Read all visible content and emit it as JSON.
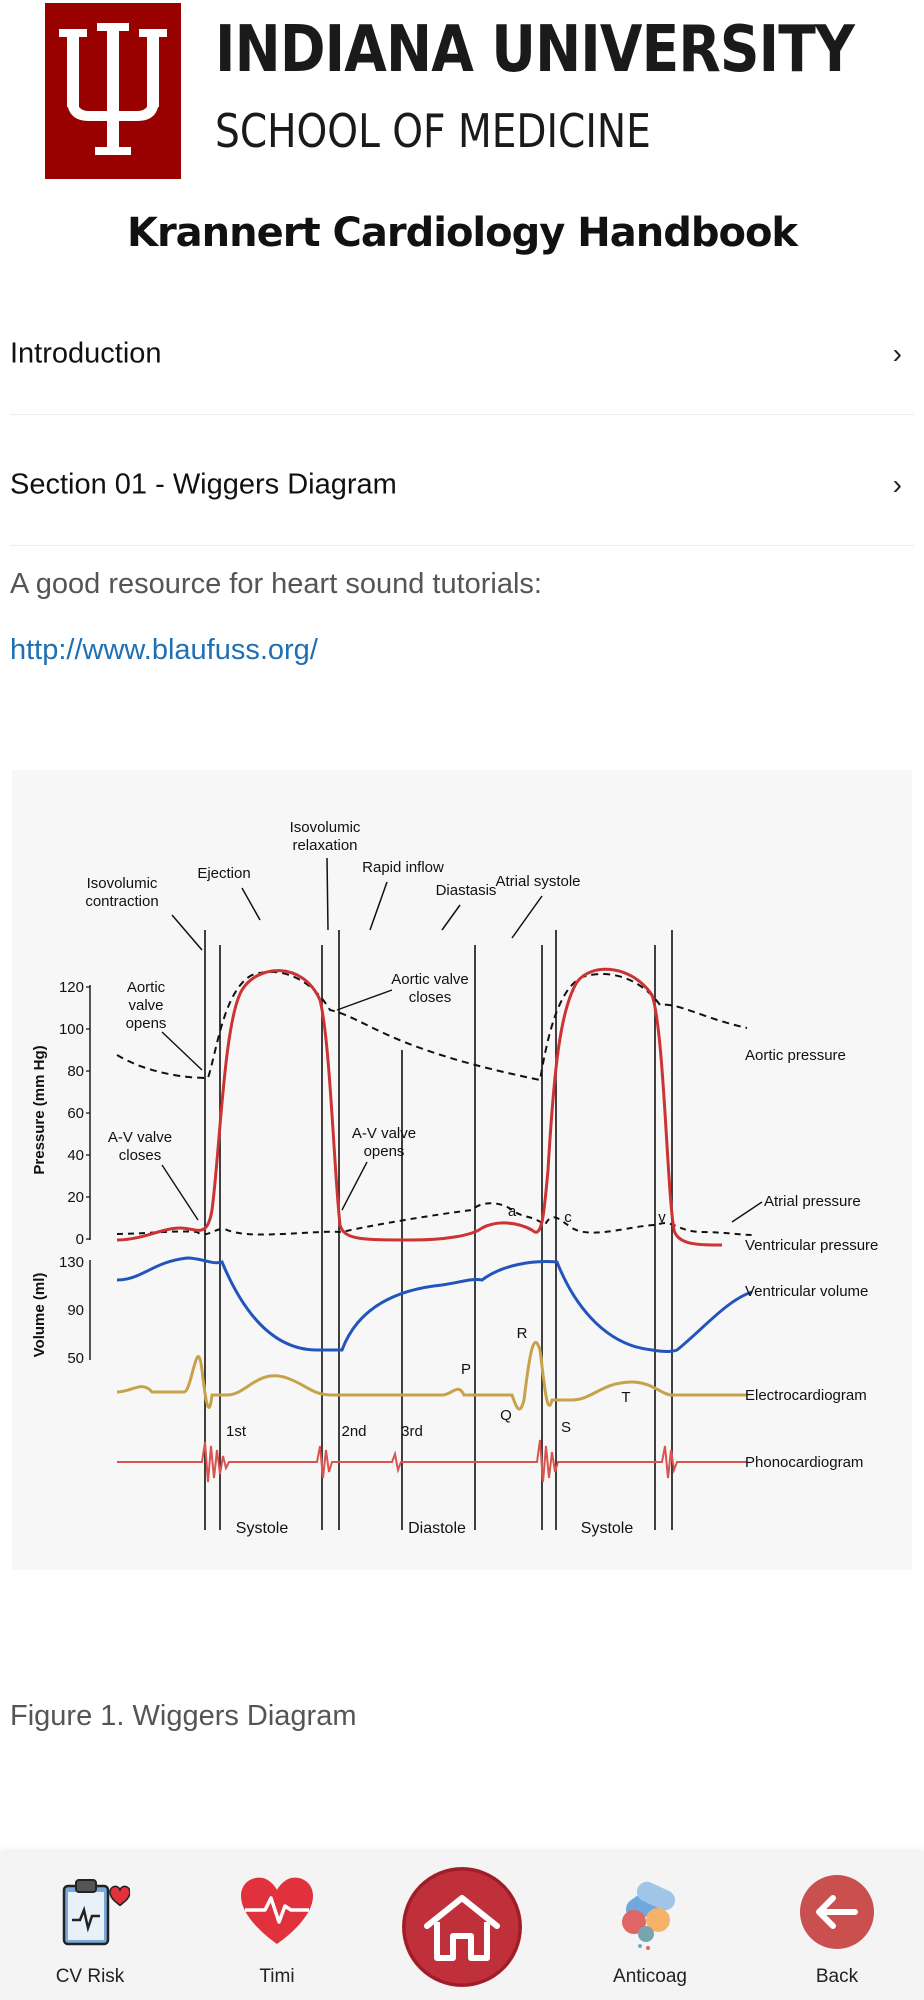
{
  "header": {
    "university": "INDIANA UNIVERSITY",
    "school": "SCHOOL OF MEDICINE",
    "app_title": "Krannert Cardiology Handbook"
  },
  "nav": [
    {
      "label": "Introduction",
      "chevron": "chevron-right-icon"
    },
    {
      "label": "Section 01 - Wiggers Diagram",
      "chevron": "chevron-right-icon"
    }
  ],
  "content": {
    "resource_text": "A good resource for heart sound tutorials:",
    "resource_link": "http://www.blaufuss.org/",
    "figure_caption": "Figure 1. Wiggers Diagram"
  },
  "diagram": {
    "phase_labels": {
      "iso_contraction": [
        "Isovolumic",
        "contraction"
      ],
      "ejection": "Ejection",
      "iso_relaxation": [
        "Isovolumic",
        "relaxation"
      ],
      "rapid_inflow": "Rapid inflow",
      "diastasis": "Diastasis",
      "atrial_systole": "Atrial systole"
    },
    "pressure_axis": {
      "label": "Pressure (mm Hg)",
      "ticks": [
        "120",
        "100",
        "80",
        "60",
        "40",
        "20",
        "0"
      ]
    },
    "volume_axis": {
      "label": "Volume (ml)",
      "ticks": [
        "130",
        "90",
        "50"
      ]
    },
    "annotations": {
      "aortic_opens": [
        "Aortic",
        "valve",
        "opens"
      ],
      "aortic_closes": [
        "Aortic valve",
        "closes"
      ],
      "av_closes": [
        "A-V valve",
        "closes"
      ],
      "av_opens": [
        "A-V valve",
        "opens"
      ],
      "a_wave": "a",
      "c_wave": "c",
      "v_wave": "v",
      "p_wave": "P",
      "q_wave": "Q",
      "r_wave": "R",
      "s_wave": "S",
      "t_wave": "T",
      "sound_1": "1st",
      "sound_2": "2nd",
      "sound_3": "3rd"
    },
    "series_labels": {
      "aortic_pressure": "Aortic pressure",
      "atrial_pressure": "Atrial pressure",
      "ventricular_pressure": "Ventricular pressure",
      "ventricular_volume": "Ventricular volume",
      "ecg": "Electrocardiogram",
      "phono": "Phonocardiogram"
    },
    "cycle_labels": [
      "Systole",
      "Diastole",
      "Systole"
    ],
    "colors": {
      "pressure": "#cc3333",
      "volume": "#2255bb",
      "ecg": "#c8a24a",
      "phono": "#d9534f"
    }
  },
  "tabbar": {
    "tabs": [
      {
        "label": "CV Risk",
        "icon": "clipboard-heart-icon"
      },
      {
        "label": "Timi",
        "icon": "heart-pulse-icon"
      },
      {
        "label": "",
        "icon": "home-icon"
      },
      {
        "label": "Anticoag",
        "icon": "pills-icon"
      },
      {
        "label": "Back",
        "icon": "back-arrow-icon"
      }
    ],
    "colors": {
      "home": "#c0303a",
      "timi": "#e0313c",
      "back": "#c9504f"
    }
  }
}
